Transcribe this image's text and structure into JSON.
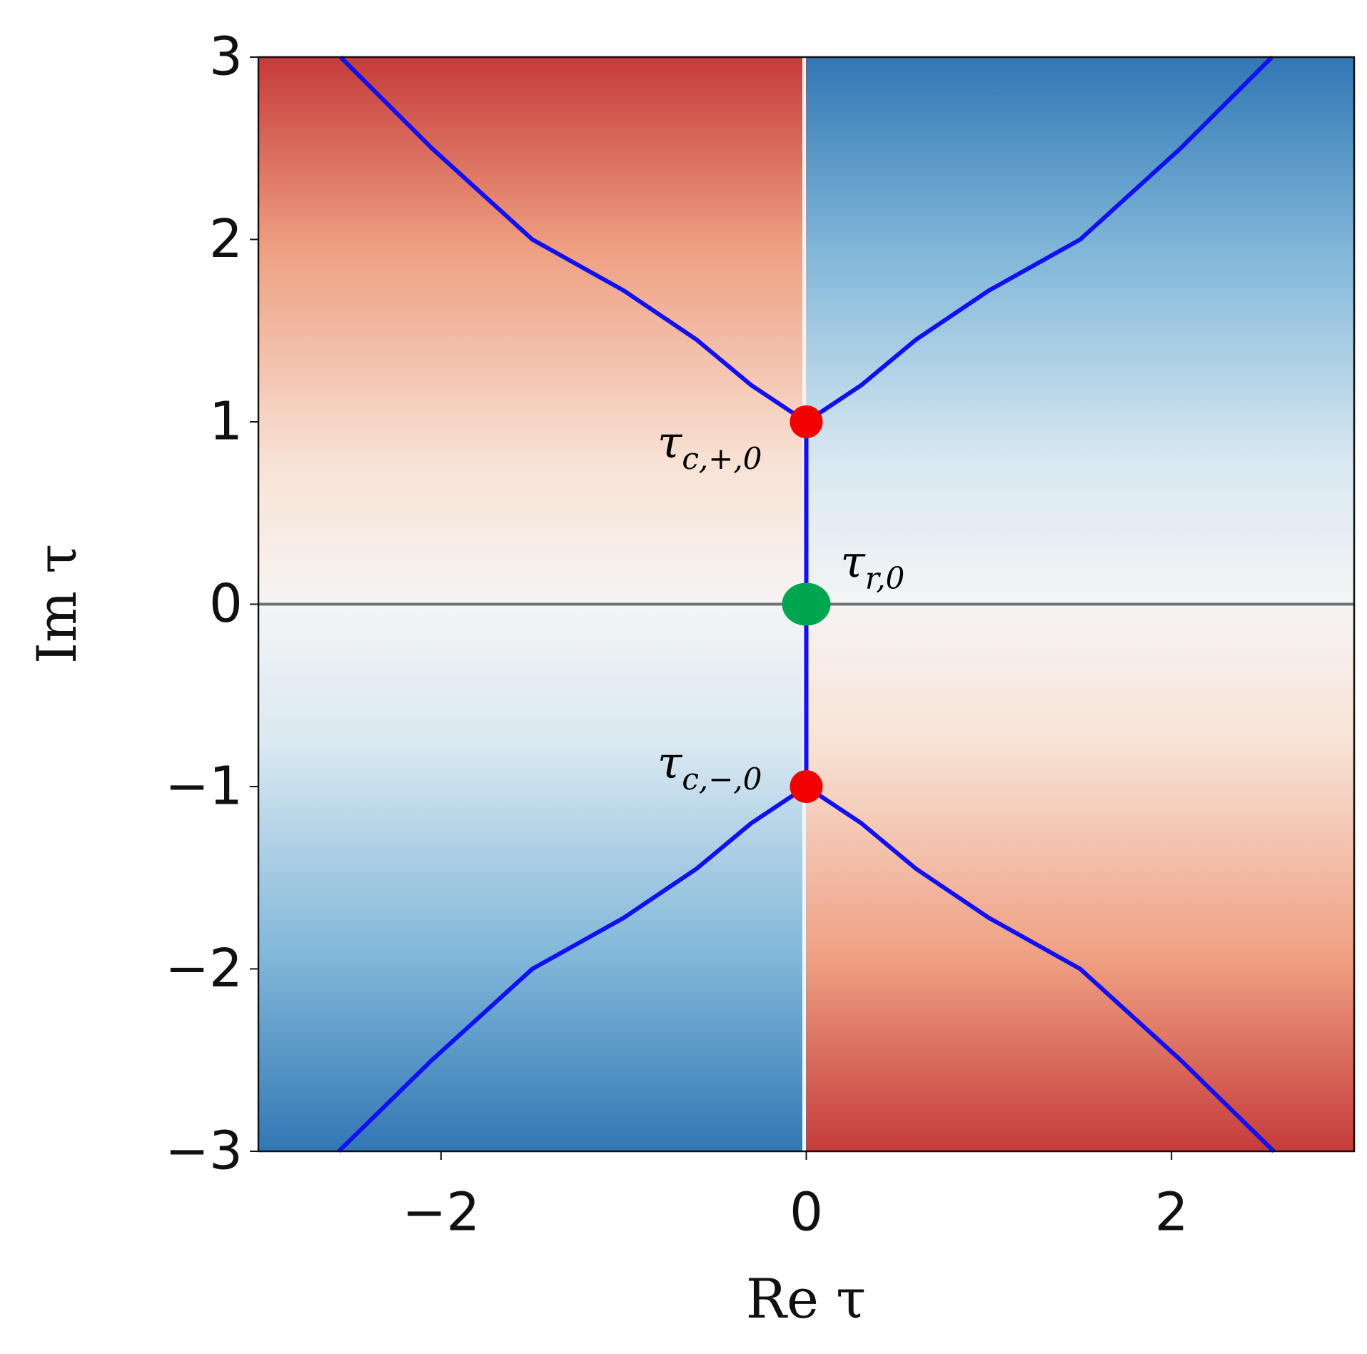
{
  "chart_data": {
    "type": "line",
    "x_label": "Re τ",
    "y_label": "Im τ",
    "xlim": [
      -3,
      3
    ],
    "ylim": [
      -3,
      3
    ],
    "xticks": [
      {
        "value": -2,
        "label": "−2"
      },
      0,
      2
    ],
    "yticks": [
      {
        "value": -3,
        "label": "−3"
      },
      {
        "value": -2,
        "label": "−2"
      },
      {
        "value": -1,
        "label": "−1"
      },
      0,
      1,
      2,
      3
    ],
    "hline": 0,
    "hline_color": "#6e7375",
    "series": [
      {
        "color": "#1010f0",
        "x": [
          0,
          -0.3,
          -0.6,
          -1.0,
          -1.5,
          -2.05,
          -2.55
        ],
        "values": [
          1,
          1.2,
          1.45,
          1.72,
          2.0,
          2.5,
          3
        ]
      },
      {
        "color": "#1010f0",
        "x": [
          0,
          0.3,
          0.6,
          1.0,
          1.5,
          2.05,
          2.55
        ],
        "values": [
          1,
          1.2,
          1.45,
          1.72,
          2.0,
          2.5,
          3
        ]
      },
      {
        "color": "#1010f0",
        "x": [
          0,
          -0.3,
          -0.6,
          -1.0,
          -1.5,
          -2.05,
          -2.56
        ],
        "values": [
          -1,
          -1.2,
          -1.45,
          -1.72,
          -2.0,
          -2.5,
          -3
        ]
      },
      {
        "color": "#1010f0",
        "x": [
          0,
          0.3,
          0.6,
          1.0,
          1.5,
          2.05,
          2.56
        ],
        "values": [
          -1,
          -1.2,
          -1.45,
          -1.72,
          -2.0,
          -2.5,
          -3
        ]
      },
      {
        "color": "#1010f0",
        "x": [
          0,
          0
        ],
        "values": [
          -1,
          1
        ]
      }
    ],
    "points": [
      {
        "x": 0,
        "y": 1,
        "color": "#f00000",
        "symbol": "τ",
        "subscript": "c,+,0"
      },
      {
        "x": 0,
        "y": 0,
        "color": "#00a550",
        "symbol": "τ",
        "subscript": "r,0"
      },
      {
        "x": 0,
        "y": -1,
        "color": "#f00000",
        "symbol": "τ",
        "subscript": "c,−,0"
      }
    ]
  }
}
